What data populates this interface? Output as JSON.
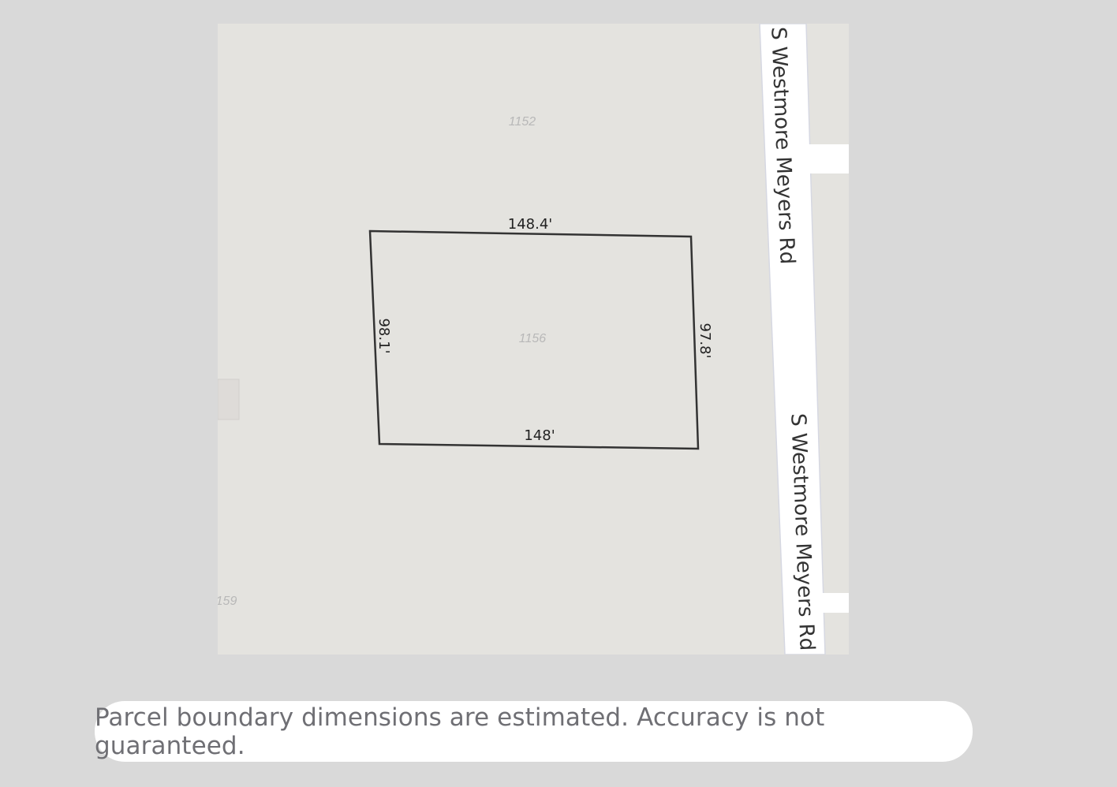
{
  "map": {
    "parcel_labels": [
      "1152",
      "1156",
      "159"
    ],
    "dimensions": {
      "top": "148.4'",
      "left": "98.1'",
      "right": "97.8'",
      "bottom": "148'"
    },
    "road_labels": [
      "S Westmore Meyers Rd",
      "S Westmore Meyers Rd"
    ],
    "colors": {
      "land": "#e4e3df",
      "road": "#ffffff",
      "boundary": "#333333"
    }
  },
  "note": {
    "text": "Parcel boundary dimensions are estimated. Accuracy is not guaranteed."
  }
}
